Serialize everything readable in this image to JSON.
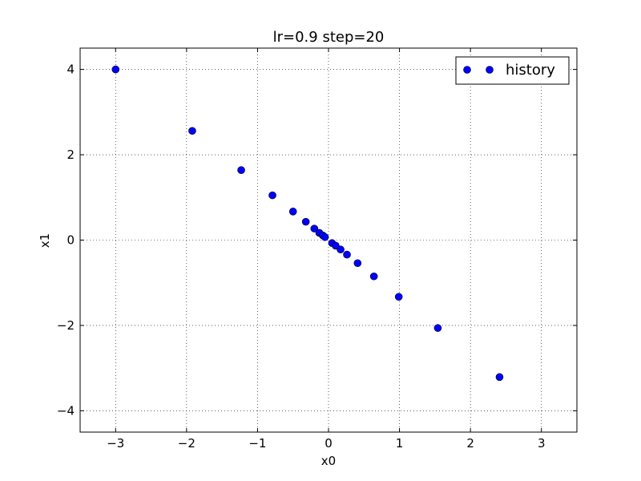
{
  "chart_data": {
    "type": "scatter",
    "title": "lr=0.9 step=20",
    "xlabel": "x0",
    "ylabel": "x1",
    "xlim": [
      -3.5,
      3.5
    ],
    "ylim": [
      -4.5,
      4.5
    ],
    "xticks": [
      -3,
      -2,
      -1,
      0,
      1,
      2,
      3
    ],
    "yticks": [
      -4,
      -2,
      0,
      2,
      4
    ],
    "xtick_labels": [
      "−3",
      "−2",
      "−1",
      "0",
      "1",
      "2",
      "3"
    ],
    "ytick_labels": [
      "−4",
      "−2",
      "0",
      "2",
      "4"
    ],
    "grid": true,
    "legend_position": "top-right",
    "series": [
      {
        "name": "history",
        "color": "#0000ff",
        "x": [
          -3.0,
          -1.92,
          -1.23,
          -0.79,
          -0.5,
          -0.32,
          -0.2,
          -0.13,
          -0.08,
          -0.05,
          0.05,
          0.1,
          0.17,
          0.26,
          0.41,
          0.64,
          0.99,
          1.54,
          2.41
        ],
        "y": [
          4.0,
          2.56,
          1.64,
          1.05,
          0.67,
          0.43,
          0.27,
          0.17,
          0.11,
          0.07,
          -0.07,
          -0.13,
          -0.22,
          -0.34,
          -0.54,
          -0.85,
          -1.33,
          -2.06,
          -3.21
        ]
      }
    ]
  }
}
